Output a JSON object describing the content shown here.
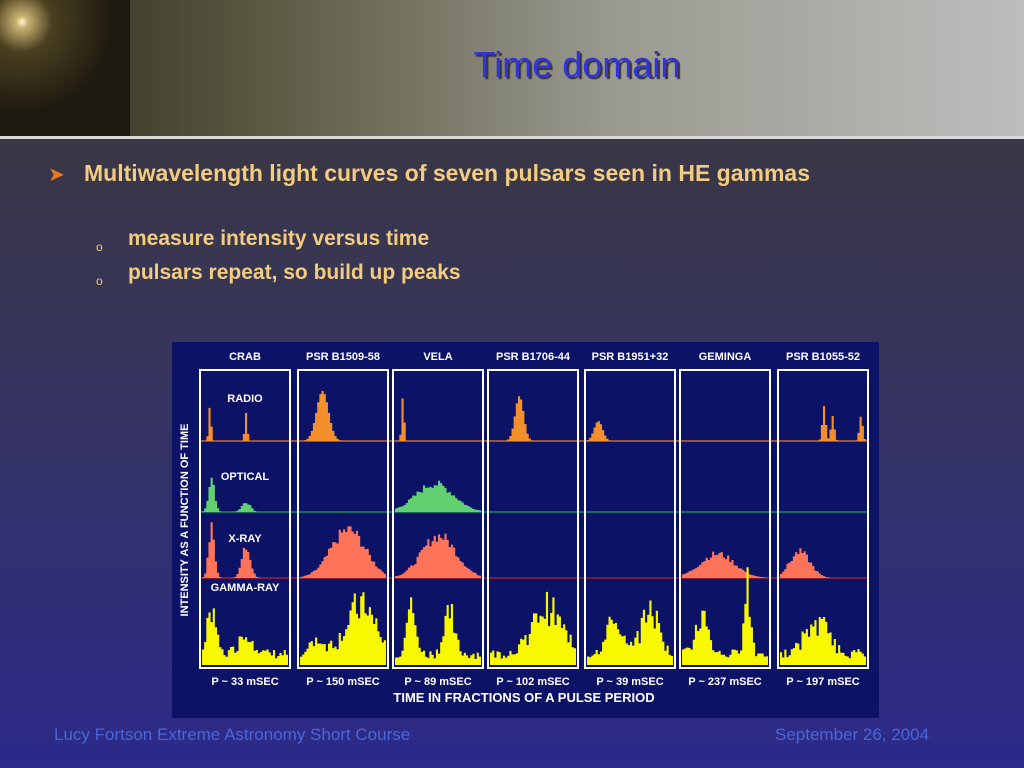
{
  "header": {
    "title": "Time domain"
  },
  "bullets": [
    {
      "text": "Multiwavelength light curves of seven pulsars seen in HE gammas",
      "subbullets": [
        "measure intensity versus time",
        "pulsars repeat, so build up peaks"
      ]
    }
  ],
  "figure": {
    "pulsars": [
      {
        "name": "CRAB",
        "period": "P ~ 33 mSEC"
      },
      {
        "name": "PSR B1509-58",
        "period": "P ~ 150 mSEC"
      },
      {
        "name": "VELA",
        "period": "P ~ 89 mSEC"
      },
      {
        "name": "PSR B1706-44",
        "period": "P ~ 102 mSEC"
      },
      {
        "name": "PSR B1951+32",
        "period": "P ~ 39 mSEC"
      },
      {
        "name": "GEMINGA",
        "period": "P ~ 237 mSEC"
      },
      {
        "name": "PSR B1055-52",
        "period": "P ~ 197 mSEC"
      }
    ],
    "bands": [
      "RADIO",
      "OPTICAL",
      "X-RAY",
      "GAMMA-RAY"
    ],
    "y_axis_label": "INTENSITY AS A FUNCTION OF TIME",
    "x_axis_label": "TIME IN FRACTIONS OF A PULSE PERIOD"
  },
  "footer": {
    "left": "Lucy Fortson  Extreme Astronomy Short Course",
    "right": "September 26, 2004"
  }
}
